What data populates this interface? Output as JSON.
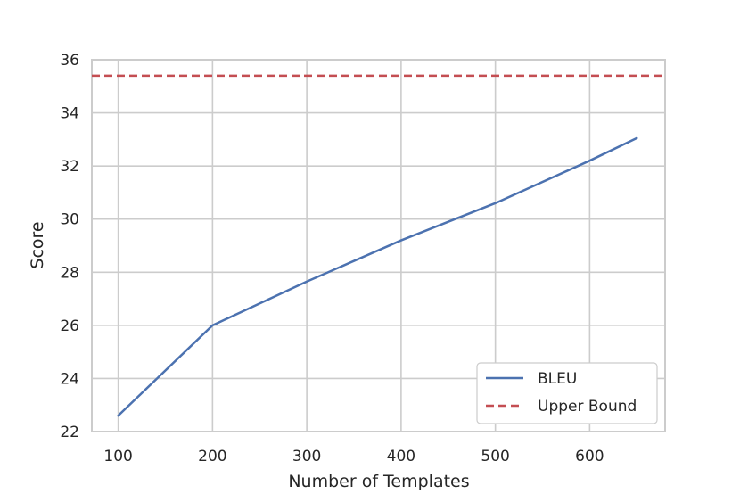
{
  "chart_data": {
    "type": "line",
    "xlabel": "Number of Templates",
    "ylabel": "Score",
    "xlim": [
      72,
      680
    ],
    "ylim": [
      22,
      36
    ],
    "xticks": [
      100,
      200,
      300,
      400,
      500,
      600
    ],
    "yticks": [
      22,
      24,
      26,
      28,
      30,
      32,
      34,
      36
    ],
    "grid": true,
    "legend_position": "lower-right",
    "series": [
      {
        "name": "BLEU",
        "style": "solid",
        "color": "#4c72b0",
        "x": [
          100,
          200,
          300,
          400,
          500,
          600,
          650
        ],
        "y": [
          22.6,
          26.0,
          27.65,
          29.2,
          30.6,
          32.2,
          33.05
        ]
      },
      {
        "name": "Upper Bound",
        "style": "dashed",
        "color": "#c44e52",
        "y_constant": 35.4
      }
    ]
  }
}
